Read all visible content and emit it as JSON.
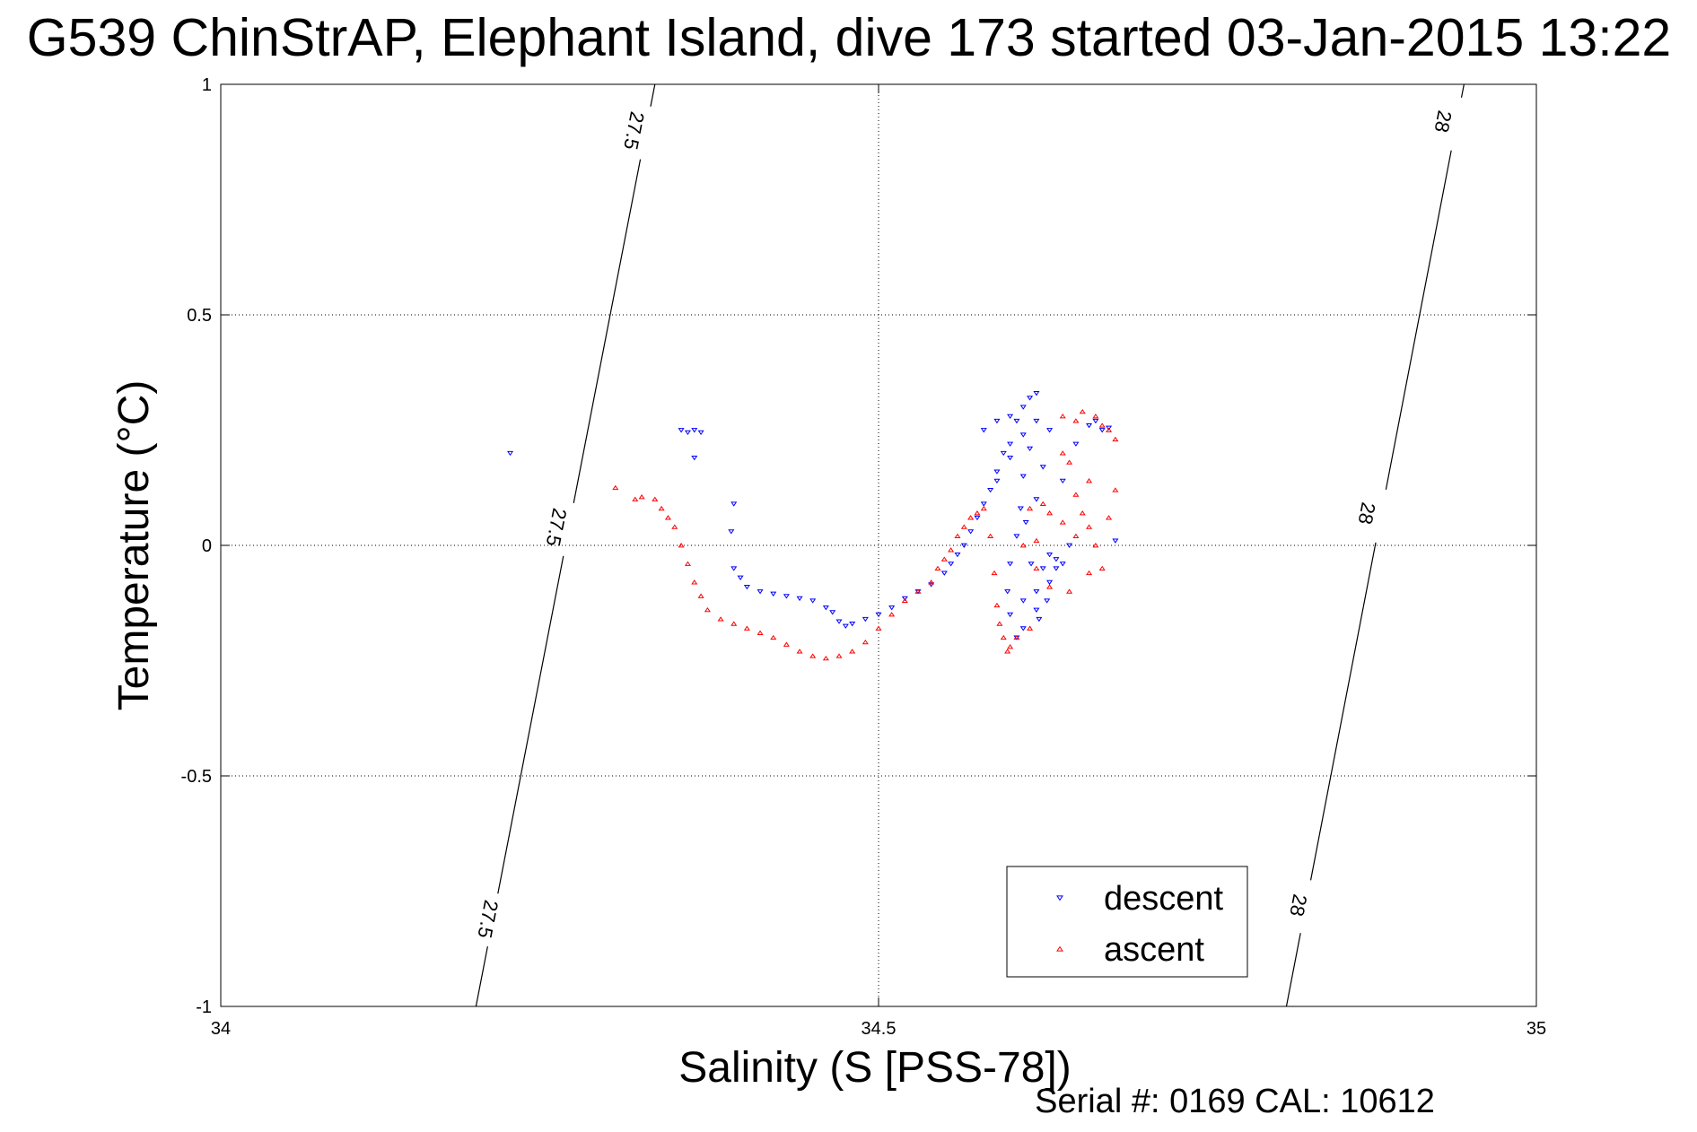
{
  "title": "G539 ChinStrAP, Elephant Island, dive 173 started 03-Jan-2015 13:22",
  "footer": "Serial #: 0169 CAL: 10612",
  "chart_data": {
    "type": "scatter",
    "xlabel": "Salinity (S [PSS-78])",
    "ylabel": "Temperature (°C)",
    "xlim": [
      34,
      35
    ],
    "ylim": [
      -1,
      1
    ],
    "xticks": [
      "34",
      "34.5",
      "35"
    ],
    "yticks": [
      "-1",
      "-0.5",
      "0",
      "0.5",
      "1"
    ],
    "grid": true,
    "legend_position": "bottom-right",
    "isopycnals": [
      {
        "label": "27.5",
        "points": [
          [
            34.194,
            -1
          ],
          [
            34.33,
            1
          ]
        ],
        "label_at": [
          [
            34.202,
            -0.81
          ],
          [
            34.254,
            0.04
          ],
          [
            34.313,
            0.9
          ]
        ]
      },
      {
        "label": "28",
        "points": [
          [
            34.81,
            -1
          ],
          [
            34.945,
            1
          ]
        ],
        "label_at": [
          [
            34.818,
            -0.78
          ],
          [
            34.87,
            0.07
          ],
          [
            34.928,
            0.92
          ]
        ]
      }
    ],
    "series": [
      {
        "name": "descent",
        "color": "#0000ff",
        "marker": "triangle-down",
        "points": [
          [
            34.22,
            0.2
          ],
          [
            34.35,
            0.25
          ],
          [
            34.355,
            0.245
          ],
          [
            34.36,
            0.25
          ],
          [
            34.365,
            0.245
          ],
          [
            34.36,
            0.19
          ],
          [
            34.39,
            0.09
          ],
          [
            34.388,
            0.03
          ],
          [
            34.39,
            -0.05
          ],
          [
            34.395,
            -0.07
          ],
          [
            34.4,
            -0.09
          ],
          [
            34.41,
            -0.1
          ],
          [
            34.42,
            -0.105
          ],
          [
            34.43,
            -0.11
          ],
          [
            34.44,
            -0.115
          ],
          [
            34.45,
            -0.12
          ],
          [
            34.46,
            -0.135
          ],
          [
            34.465,
            -0.145
          ],
          [
            34.47,
            -0.165
          ],
          [
            34.475,
            -0.175
          ],
          [
            34.48,
            -0.17
          ],
          [
            34.49,
            -0.16
          ],
          [
            34.5,
            -0.15
          ],
          [
            34.51,
            -0.135
          ],
          [
            34.52,
            -0.115
          ],
          [
            34.53,
            -0.1
          ],
          [
            34.54,
            -0.085
          ],
          [
            34.55,
            -0.06
          ],
          [
            34.555,
            -0.04
          ],
          [
            34.56,
            -0.02
          ],
          [
            34.565,
            0
          ],
          [
            34.57,
            0.03
          ],
          [
            34.575,
            0.06
          ],
          [
            34.58,
            0.09
          ],
          [
            34.585,
            0.12
          ],
          [
            34.59,
            0.14
          ],
          [
            34.595,
            0.2
          ],
          [
            34.6,
            0.22
          ],
          [
            34.605,
            0.27
          ],
          [
            34.61,
            0.3
          ],
          [
            34.615,
            0.32
          ],
          [
            34.62,
            0.33
          ],
          [
            34.62,
            0.27
          ],
          [
            34.615,
            0.21
          ],
          [
            34.61,
            0.15
          ],
          [
            34.608,
            0.08
          ],
          [
            34.605,
            0.02
          ],
          [
            34.6,
            -0.04
          ],
          [
            34.598,
            -0.1
          ],
          [
            34.6,
            -0.15
          ],
          [
            34.605,
            -0.2
          ],
          [
            34.61,
            -0.18
          ],
          [
            34.62,
            -0.1
          ],
          [
            34.625,
            -0.05
          ],
          [
            34.63,
            -0.02
          ],
          [
            34.635,
            -0.05
          ],
          [
            34.64,
            -0.04
          ],
          [
            34.63,
            -0.08
          ],
          [
            34.62,
            -0.14
          ],
          [
            34.61,
            -0.12
          ],
          [
            34.625,
            0.17
          ],
          [
            34.62,
            0.1
          ],
          [
            34.63,
            0.25
          ],
          [
            34.64,
            0.14
          ],
          [
            34.65,
            0.22
          ],
          [
            34.66,
            0.26
          ],
          [
            34.665,
            0.27
          ],
          [
            34.67,
            0.25
          ],
          [
            34.675,
            0.255
          ],
          [
            34.68,
            0.01
          ],
          [
            34.59,
            0.16
          ],
          [
            34.6,
            0.19
          ],
          [
            34.612,
            0.05
          ],
          [
            34.616,
            -0.04
          ],
          [
            34.622,
            -0.16
          ],
          [
            34.628,
            -0.12
          ],
          [
            34.635,
            -0.03
          ],
          [
            34.645,
            0.0
          ],
          [
            34.58,
            0.25
          ],
          [
            34.59,
            0.27
          ],
          [
            34.6,
            0.28
          ],
          [
            34.61,
            0.24
          ]
        ]
      },
      {
        "name": "ascent",
        "color": "#ff0000",
        "marker": "triangle-up",
        "points": [
          [
            34.3,
            0.125
          ],
          [
            34.315,
            0.1
          ],
          [
            34.32,
            0.105
          ],
          [
            34.33,
            0.1
          ],
          [
            34.335,
            0.08
          ],
          [
            34.34,
            0.06
          ],
          [
            34.345,
            0.04
          ],
          [
            34.35,
            0.0
          ],
          [
            34.355,
            -0.04
          ],
          [
            34.36,
            -0.08
          ],
          [
            34.365,
            -0.11
          ],
          [
            34.37,
            -0.14
          ],
          [
            34.38,
            -0.16
          ],
          [
            34.39,
            -0.17
          ],
          [
            34.4,
            -0.18
          ],
          [
            34.41,
            -0.19
          ],
          [
            34.42,
            -0.2
          ],
          [
            34.43,
            -0.215
          ],
          [
            34.44,
            -0.23
          ],
          [
            34.45,
            -0.24
          ],
          [
            34.46,
            -0.245
          ],
          [
            34.47,
            -0.24
          ],
          [
            34.48,
            -0.23
          ],
          [
            34.49,
            -0.21
          ],
          [
            34.5,
            -0.18
          ],
          [
            34.51,
            -0.15
          ],
          [
            34.52,
            -0.12
          ],
          [
            34.53,
            -0.1
          ],
          [
            34.54,
            -0.08
          ],
          [
            34.545,
            -0.05
          ],
          [
            34.55,
            -0.03
          ],
          [
            34.555,
            -0.01
          ],
          [
            34.56,
            0.02
          ],
          [
            34.565,
            0.04
          ],
          [
            34.57,
            0.06
          ],
          [
            34.575,
            0.07
          ],
          [
            34.58,
            0.08
          ],
          [
            34.585,
            0.02
          ],
          [
            34.588,
            -0.06
          ],
          [
            34.59,
            -0.13
          ],
          [
            34.592,
            -0.17
          ],
          [
            34.595,
            -0.2
          ],
          [
            34.598,
            -0.23
          ],
          [
            34.6,
            -0.22
          ],
          [
            34.605,
            -0.2
          ],
          [
            34.62,
            0.01
          ],
          [
            34.63,
            0.07
          ],
          [
            34.64,
            0.05
          ],
          [
            34.65,
            0.11
          ],
          [
            34.655,
            0.07
          ],
          [
            34.66,
            0.04
          ],
          [
            34.665,
            0.0
          ],
          [
            34.67,
            -0.05
          ],
          [
            34.66,
            0.14
          ],
          [
            34.645,
            0.18
          ],
          [
            34.64,
            0.28
          ],
          [
            34.65,
            0.27
          ],
          [
            34.655,
            0.29
          ],
          [
            34.665,
            0.28
          ],
          [
            34.67,
            0.26
          ],
          [
            34.675,
            0.25
          ],
          [
            34.68,
            0.23
          ],
          [
            34.64,
            0.2
          ],
          [
            34.63,
            -0.09
          ],
          [
            34.615,
            -0.18
          ],
          [
            34.62,
            -0.05
          ],
          [
            34.68,
            0.12
          ],
          [
            34.675,
            0.06
          ],
          [
            34.65,
            0.02
          ],
          [
            34.625,
            0.09
          ],
          [
            34.615,
            0.08
          ],
          [
            34.61,
            0.0
          ],
          [
            34.645,
            -0.1
          ],
          [
            34.66,
            -0.06
          ]
        ]
      }
    ]
  }
}
